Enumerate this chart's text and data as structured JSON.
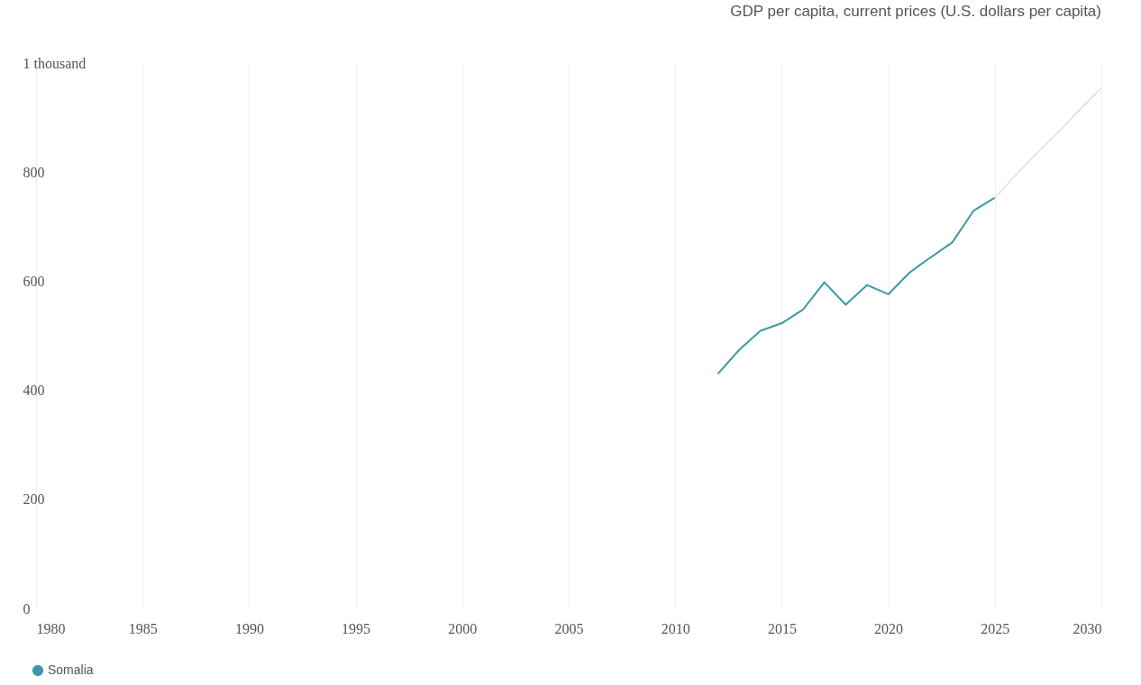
{
  "chart_data": {
    "type": "line",
    "title": "GDP per capita, current prices (U.S. dollars per capita)",
    "xlim": [
      1980,
      2030
    ],
    "xticks": [
      1980,
      1985,
      1990,
      1995,
      2000,
      2005,
      2010,
      2015,
      2020,
      2025,
      2030
    ],
    "ylim": [
      0,
      1000
    ],
    "yticks": [
      0,
      200,
      400,
      600,
      800,
      {
        "value": 1000,
        "label": "1 thousand"
      }
    ],
    "grid": "x",
    "legend": "bottom",
    "series": [
      {
        "name": "Somalia",
        "color": "#3a9aa3",
        "x": [
          2012,
          2013,
          2014,
          2015,
          2016,
          2017,
          2018,
          2019,
          2020,
          2021,
          2022,
          2023,
          2024,
          2025
        ],
        "values": [
          430,
          474,
          509,
          523,
          548,
          598,
          557,
          593,
          576,
          616,
          644,
          671,
          729,
          753
        ]
      },
      {
        "color": "#e6e6e6",
        "x": [
          2025,
          2026,
          2027,
          2028,
          2029,
          2030
        ],
        "values": [
          753,
          795,
          836,
          874,
          915,
          954
        ]
      }
    ]
  }
}
